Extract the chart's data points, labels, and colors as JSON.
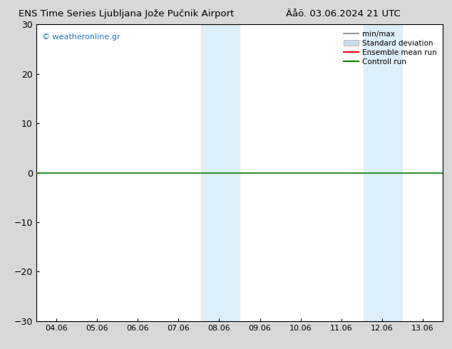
{
  "title_left": "ENS Time Series Ljubljana Jože Pučnik Airport",
  "title_right": "Äåö. 03.06.2024 21 UTC",
  "watermark": "© weatheronline.gr",
  "x_labels": [
    "04.06",
    "05.06",
    "06.06",
    "07.06",
    "08.06",
    "09.06",
    "10.06",
    "11.06",
    "12.06",
    "13.06"
  ],
  "x_ticks": [
    0,
    1,
    2,
    3,
    4,
    5,
    6,
    7,
    8,
    9
  ],
  "xlim": [
    -0.5,
    9.5
  ],
  "ylim": [
    -30,
    30
  ],
  "yticks": [
    -30,
    -20,
    -10,
    0,
    10,
    20,
    30
  ],
  "shaded_regions": [
    {
      "xmin": 3.55,
      "xmax": 4.0,
      "color": "#ddeef8"
    },
    {
      "xmin": 4.0,
      "xmax": 4.5,
      "color": "#ddeef8"
    },
    {
      "xmin": 7.55,
      "xmax": 8.0,
      "color": "#ddeef8"
    },
    {
      "xmin": 8.0,
      "xmax": 8.5,
      "color": "#ddeef8"
    }
  ],
  "green_line_y": 0,
  "background_color": "#d8d8d8",
  "plot_bg_color": "#ffffff",
  "legend_items": [
    {
      "label": "min/max",
      "color": "#808080",
      "lw": 1.2,
      "ls": "-",
      "type": "line"
    },
    {
      "label": "Standard deviation",
      "color": "#c8dce8",
      "lw": 6,
      "ls": "-",
      "type": "patch"
    },
    {
      "label": "Ensemble mean run",
      "color": "#ff0000",
      "lw": 1.5,
      "ls": "-",
      "type": "line"
    },
    {
      "label": "Controll run",
      "color": "#008000",
      "lw": 1.5,
      "ls": "-",
      "type": "line"
    }
  ]
}
